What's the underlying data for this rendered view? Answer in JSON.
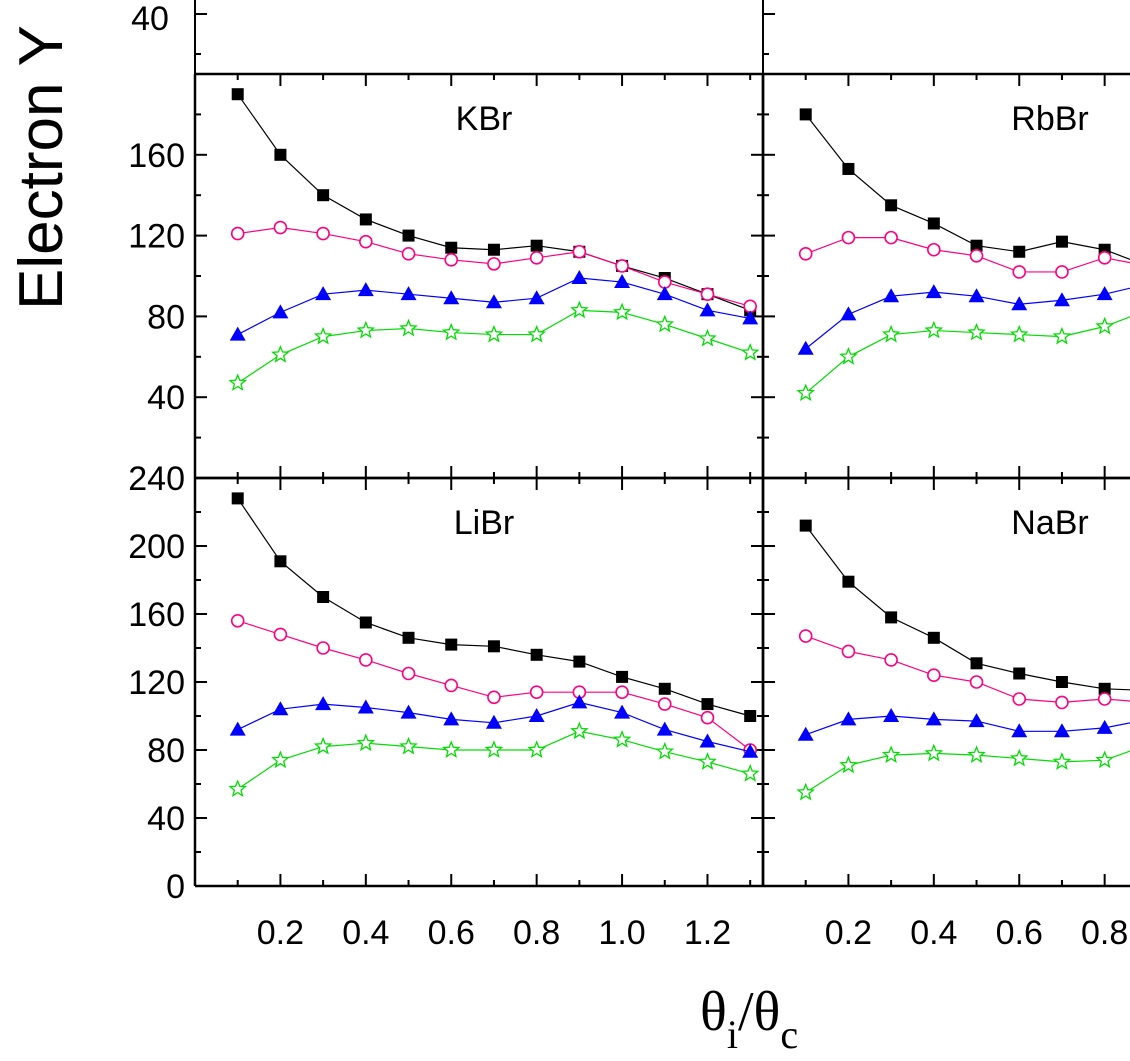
{
  "chart_data": {
    "type": "line",
    "ylabel_visible": "Electron Y",
    "xlabel": {
      "main1": "θ",
      "sub1": "i",
      "slash": "/",
      "main2": "θ",
      "sub2": "c"
    },
    "top_partial_tick": "40",
    "series_styles": [
      {
        "marker": "filled-square",
        "color": "#000000",
        "line_color": "#000000"
      },
      {
        "marker": "open-circle",
        "color": "#ff0080",
        "line_color": "#ff0080"
      },
      {
        "marker": "filled-triangle",
        "color": "#0000ff",
        "line_color": "#0000ff"
      },
      {
        "marker": "open-star",
        "color": "#00dd00",
        "line_color": "#00dd00"
      }
    ],
    "panels": [
      {
        "title": "KBr",
        "yticks": [
          "160",
          "120",
          "80",
          "40"
        ],
        "xticks": [],
        "x": [
          0.1,
          0.2,
          0.3,
          0.4,
          0.5,
          0.6,
          0.7,
          0.8,
          0.9,
          1.0,
          1.1,
          1.2,
          1.3
        ],
        "series": [
          {
            "values": [
              190,
              160,
              140,
              128,
              120,
              114,
              113,
              115,
              112,
              105,
              99,
              91,
              83
            ]
          },
          {
            "values": [
              121,
              124,
              121,
              117,
              111,
              108,
              106,
              109,
              112,
              105,
              97,
              91,
              85
            ]
          },
          {
            "values": [
              71,
              82,
              91,
              93,
              91,
              89,
              87,
              89,
              99,
              97,
              91,
              83,
              79
            ]
          },
          {
            "values": [
              47,
              61,
              70,
              73,
              74,
              72,
              71,
              71,
              83,
              82,
              76,
              69,
              62
            ]
          }
        ]
      },
      {
        "title": "RbBr",
        "yticks": [],
        "xticks": [],
        "x": [
          0.1,
          0.2,
          0.3,
          0.4,
          0.5,
          0.6,
          0.7,
          0.8,
          0.9
        ],
        "series": [
          {
            "values": [
              180,
              153,
              135,
              126,
              115,
              112,
              117,
              113,
              105
            ]
          },
          {
            "values": [
              111,
              119,
              119,
              113,
              110,
              102,
              102,
              109,
              105
            ]
          },
          {
            "values": [
              64,
              81,
              90,
              92,
              90,
              86,
              88,
              91,
              96
            ]
          },
          {
            "values": [
              42,
              60,
              71,
              73,
              72,
              71,
              70,
              75,
              83
            ]
          }
        ]
      },
      {
        "title": "LiBr",
        "yticks": [
          "240",
          "200",
          "160",
          "120",
          "80",
          "40",
          "0"
        ],
        "xticks": [
          "0.2",
          "0.4",
          "0.6",
          "0.8",
          "1.0",
          "1.2"
        ],
        "x": [
          0.1,
          0.2,
          0.3,
          0.4,
          0.5,
          0.6,
          0.7,
          0.8,
          0.9,
          1.0,
          1.1,
          1.2,
          1.3
        ],
        "series": [
          {
            "values": [
              228,
              191,
              170,
              155,
              146,
              142,
              141,
              136,
              132,
              123,
              116,
              107,
              100
            ]
          },
          {
            "values": [
              156,
              148,
              140,
              133,
              125,
              118,
              111,
              114,
              114,
              114,
              107,
              99,
              80
            ]
          },
          {
            "values": [
              92,
              104,
              107,
              105,
              102,
              98,
              96,
              100,
              108,
              102,
              92,
              85,
              79
            ]
          },
          {
            "values": [
              57,
              74,
              82,
              84,
              82,
              80,
              80,
              80,
              91,
              86,
              79,
              73,
              66
            ]
          }
        ]
      },
      {
        "title": "NaBr",
        "yticks": [],
        "xticks": [
          "0.2",
          "0.4",
          "0.6",
          "0.8"
        ],
        "x": [
          0.1,
          0.2,
          0.3,
          0.4,
          0.5,
          0.6,
          0.7,
          0.8,
          0.9
        ],
        "series": [
          {
            "values": [
              212,
              179,
              158,
              146,
              131,
              125,
              120,
              116,
              115
            ]
          },
          {
            "values": [
              147,
              138,
              133,
              124,
              120,
              110,
              108,
              110,
              108
            ]
          },
          {
            "values": [
              89,
              98,
              100,
              98,
              97,
              91,
              91,
              93,
              98
            ]
          },
          {
            "values": [
              55,
              71,
              77,
              78,
              77,
              75,
              73,
              74,
              83
            ]
          }
        ]
      }
    ]
  }
}
